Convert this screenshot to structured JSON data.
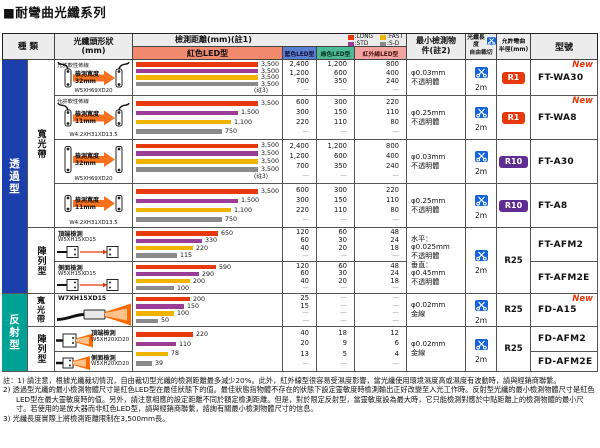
{
  "title": "■耐彎曲光纖系列",
  "new_label": "New",
  "header": {
    "type": "種 類",
    "shape1": "光纖頭形狀",
    "shape2": "(mm)",
    "distance": "檢測距離(mm)(註1)",
    "red_led": "紅色LED型",
    "blue_led": "藍色LED型",
    "green_led": "綠色LED型",
    "ir_led": "紅外線LED型",
    "min1": "最小檢測物",
    "min2": "件(註2)",
    "cut1": "光纖長度",
    "cut2": "自由裁切",
    "rad1": "允許彎曲",
    "rad2": "半徑(mm)",
    "model": "型號",
    "legend": [
      {
        "label": "LONG",
        "color": "#e8380d"
      },
      {
        "label": "FAST",
        "color": "#f0b400"
      },
      {
        "label": "STD",
        "color": "#9b3d97"
      },
      {
        "label": "S-D",
        "color": "#8a8a8a"
      }
    ]
  },
  "bar_colors": [
    "#e8380d",
    "#9b3d97",
    "#f0b400",
    "#8a8a8a"
  ],
  "bar_series_names": [
    "LONG",
    "STD",
    "FAST",
    "S-D"
  ],
  "badge_colors": {
    "red": "#e8380d",
    "purple": "#5f2d91"
  },
  "scissors_color": "#1565d8",
  "groups": [
    {
      "label": "透過型",
      "color": "#1c3fae",
      "from": 0,
      "to": 5
    },
    {
      "label": "反射型",
      "color": "#00a295",
      "from": 6,
      "to": 8
    }
  ],
  "subgroups": [
    {
      "label": "寬光帶",
      "from": 0,
      "to": 3
    },
    {
      "label": "陣列型",
      "from": 4,
      "to": 5
    },
    {
      "label": "寬光帶",
      "from": 6,
      "to": 6
    },
    {
      "label": "陣列型",
      "from": 7,
      "to": 8
    }
  ],
  "rows": [
    {
      "model": "FT-WA30",
      "isNew": true,
      "shape": {
        "kind": "through",
        "h": "tall",
        "flex": "允許軟性佈線",
        "wl1": "檢測寬度",
        "wl2": "32mm",
        "dim": "W5XH69XD20"
      },
      "bars": {
        "values": [
          3500,
          3500,
          3500,
          3500
        ],
        "labels": [
          "3,500",
          "3,500",
          "3,500",
          "3,500"
        ],
        "note": "(註3)"
      },
      "blue": [
        "2,400",
        "1,200",
        "700",
        "—"
      ],
      "green": [
        "1,200",
        "600",
        "350",
        "—"
      ],
      "ir": [
        "800",
        "400",
        "240",
        "—"
      ],
      "min": [
        "φ0.03mm",
        "不透明體"
      ],
      "cut": "2m",
      "rad": {
        "v": "R1",
        "style": "red"
      }
    },
    {
      "model": "FT-WA8",
      "isNew": true,
      "shape": {
        "kind": "through",
        "h": "short",
        "flex": "允許軟性佈線",
        "wl1": "檢測寬度",
        "wl2": "11mm",
        "dim": "W4.2XH31XD13.5"
      },
      "bars": {
        "values": [
          3500,
          1500,
          1100,
          750
        ],
        "labels": [
          "3,500",
          "1,500",
          "1,100",
          "750"
        ]
      },
      "blue": [
        "600",
        "300",
        "220",
        "—"
      ],
      "green": [
        "300",
        "150",
        "110",
        "—"
      ],
      "ir": [
        "220",
        "110",
        "80",
        "—"
      ],
      "min": [
        "φ0.25mm",
        "不透明體"
      ],
      "cut": "2m",
      "rad": {
        "v": "R1",
        "style": "red"
      }
    },
    {
      "model": "FT-A30",
      "shape": {
        "kind": "through",
        "h": "tall",
        "wl1": "檢測寬度",
        "wl2": "32mm",
        "dim": "W5XH69XD20"
      },
      "bars": {
        "values": [
          3500,
          3500,
          3500,
          3500
        ],
        "labels": [
          "3,500",
          "3,500",
          "3,500",
          "3,500"
        ],
        "note": "(註3)"
      },
      "blue": [
        "2,400",
        "1,200",
        "700",
        "—"
      ],
      "green": [
        "1,200",
        "600",
        "350",
        "—"
      ],
      "ir": [
        "800",
        "400",
        "240",
        "—"
      ],
      "min": [
        "φ0.03mm",
        "不透明體"
      ],
      "cut": "2m",
      "rad": {
        "v": "R10",
        "style": "purple"
      }
    },
    {
      "model": "FT-A8",
      "shape": {
        "kind": "through",
        "h": "short",
        "wl1": "檢測寬度",
        "wl2": "11mm",
        "dim": "W4.2XH31XD13.5"
      },
      "bars": {
        "values": [
          3500,
          1500,
          1100,
          750
        ],
        "labels": [
          "3,500",
          "1,500",
          "1,100",
          "750"
        ]
      },
      "blue": [
        "600",
        "300",
        "220",
        "—"
      ],
      "green": [
        "300",
        "150",
        "110",
        "—"
      ],
      "ir": [
        "220",
        "110",
        "80",
        "—"
      ],
      "min": [
        "φ0.25mm",
        "不透明體"
      ],
      "cut": "2m",
      "rad": {
        "v": "R10",
        "style": "purple"
      }
    },
    {
      "model": "FT-AFM2",
      "shape": {
        "kind": "array",
        "label": "頂端檢測",
        "dim": "W5XH15XD15"
      },
      "bars": {
        "values": [
          650,
          330,
          220,
          115
        ],
        "labels": [
          "650",
          "330",
          "220",
          "115"
        ]
      },
      "blue": [
        "120",
        "60",
        "40",
        "—"
      ],
      "green": [
        "60",
        "30",
        "20",
        "—"
      ],
      "ir": [
        "48",
        "24",
        "18",
        "—"
      ],
      "min": [
        "水平：",
        "φ0.025mm",
        "不透明體",
        "垂直：",
        "φ0.45mm",
        "不透明體"
      ],
      "minSpan": 2,
      "cut": "2m",
      "cutSpan": 2,
      "rad": {
        "v": "R25"
      },
      "radSpan": 2
    },
    {
      "model": "FT-AFM2E",
      "shape": {
        "kind": "array",
        "label": "側面檢測",
        "dim": "W5XH15XD15"
      },
      "bars": {
        "values": [
          590,
          290,
          200,
          100
        ],
        "labels": [
          "590",
          "290",
          "200",
          "100"
        ]
      },
      "blue": [
        "120",
        "60",
        "40",
        "—"
      ],
      "green": [
        "60",
        "30",
        "20",
        "—"
      ],
      "ir": [
        "48",
        "24",
        "18",
        "—"
      ]
    },
    {
      "model": "FD-A15",
      "isNew": true,
      "shape": {
        "kind": "beam",
        "dim": "W7XH15XD15"
      },
      "bars": {
        "values": [
          200,
          150,
          100,
          50
        ],
        "labels": [
          "200",
          "150",
          "100",
          "50"
        ]
      },
      "blue": [
        "25",
        "15",
        "—",
        "—"
      ],
      "green": [
        "—",
        "—",
        "—",
        "—"
      ],
      "ir": [
        "—",
        "—",
        "—",
        "—"
      ],
      "min": [
        "φ0.02mm",
        "金線"
      ],
      "cut": "2m",
      "rad": {
        "v": "R25"
      }
    },
    {
      "model": "FD-AFM2",
      "shape": {
        "kind": "rhead",
        "label": "頂端檢測",
        "dim": "W5XH20XD20"
      },
      "bars": {
        "values": [
          220,
          110,
          78,
          39
        ],
        "labels": [
          "220",
          "110",
          "78",
          "39"
        ],
        "span": 2
      },
      "blue": [
        "40",
        "20",
        "13",
        "—"
      ],
      "green": [
        "18",
        "9",
        "5",
        "—"
      ],
      "ir": [
        "12",
        "6",
        "4",
        "—"
      ],
      "valSpan": 2,
      "min": [
        "φ0.02mm",
        "金線"
      ],
      "minSpan": 2,
      "cut": "2m",
      "cutSpan": 2,
      "rad": {
        "v": "R25"
      },
      "radSpan": 2
    },
    {
      "model": "FD-AFM2E",
      "shape": {
        "kind": "rhead",
        "label": "側面檢測",
        "dim": "W5XH20XD20"
      }
    }
  ],
  "notes": [
    "註：1) 請注意，根據光纖裁切情況，自由裁切型光纖的檢測距離最多減少20%。此外，紅外線型很容易受濕度影響，當光纖使用環境濕度高或濕度有波動時，請與經銷商聯繫。",
    "2) 透過型光纖的最小檢測物體尺寸是紅色LED型在最佳狀態下的值。最佳狀態指物體不存在的狀態下設定靈敏度時檢測輸出正好改變至入光工作時。反射型光纖的最小檢測物體尺寸是紅色LED型在最大靈敏度時的值。另外，請注意相應的設定距離不同於額定檢測距離。但是，對於限定反射型，當靈敏度設為最大時，它只能檢測對應於中點距離上的檢測物體的最小尺寸。若使用的是放大器而非紅色LED型，請與經銷商聯繫，諮詢有關最小檢測物體尺寸的信息。",
    "3) 光纖長度實際上將檢測距離限制在3,500mm長。"
  ],
  "chart_data": {
    "type": "bar",
    "title": "檢測距離(mm) 紅色LED型",
    "legend_position": "top-right",
    "scale": "log",
    "categories": [
      "FT-WA30",
      "FT-WA8",
      "FT-A30",
      "FT-A8",
      "FT-AFM2",
      "FT-AFM2E",
      "FD-A15",
      "FD-AFM2 / FD-AFM2E"
    ],
    "series": [
      {
        "name": "LONG",
        "color": "#e8380d",
        "values": [
          3500,
          3500,
          3500,
          3500,
          650,
          590,
          200,
          220
        ]
      },
      {
        "name": "STD",
        "color": "#9b3d97",
        "values": [
          3500,
          1500,
          3500,
          1500,
          330,
          290,
          150,
          110
        ]
      },
      {
        "name": "FAST",
        "color": "#f0b400",
        "values": [
          3500,
          1100,
          3500,
          1100,
          220,
          200,
          100,
          78
        ]
      },
      {
        "name": "S-D",
        "color": "#8a8a8a",
        "values": [
          3500,
          750,
          3500,
          750,
          115,
          100,
          50,
          39
        ]
      }
    ]
  }
}
